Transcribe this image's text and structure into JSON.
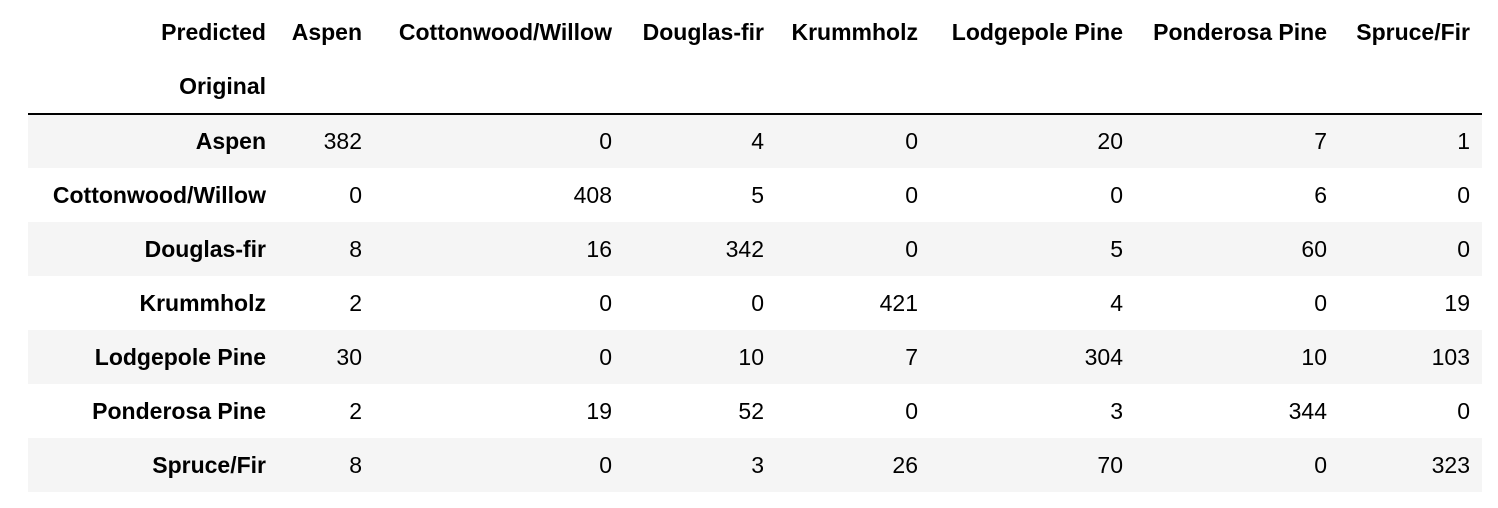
{
  "table": {
    "columns_axis_label": "Predicted",
    "index_axis_label": "Original",
    "columns": [
      "Aspen",
      "Cottonwood/Willow",
      "Douglas-fir",
      "Krummholz",
      "Lodgepole Pine",
      "Ponderosa Pine",
      "Spruce/Fir"
    ],
    "rows": [
      {
        "label": "Aspen",
        "values": [
          "382",
          "0",
          "4",
          "0",
          "20",
          "7",
          "1"
        ]
      },
      {
        "label": "Cottonwood/Willow",
        "values": [
          "0",
          "408",
          "5",
          "0",
          "0",
          "6",
          "0"
        ]
      },
      {
        "label": "Douglas-fir",
        "values": [
          "8",
          "16",
          "342",
          "0",
          "5",
          "60",
          "0"
        ]
      },
      {
        "label": "Krummholz",
        "values": [
          "2",
          "0",
          "0",
          "421",
          "4",
          "0",
          "19"
        ]
      },
      {
        "label": "Lodgepole Pine",
        "values": [
          "30",
          "0",
          "10",
          "7",
          "304",
          "10",
          "103"
        ]
      },
      {
        "label": "Ponderosa Pine",
        "values": [
          "2",
          "19",
          "52",
          "0",
          "3",
          "344",
          "0"
        ]
      },
      {
        "label": "Spruce/Fir",
        "values": [
          "8",
          "0",
          "3",
          "26",
          "70",
          "0",
          "323"
        ]
      }
    ]
  }
}
